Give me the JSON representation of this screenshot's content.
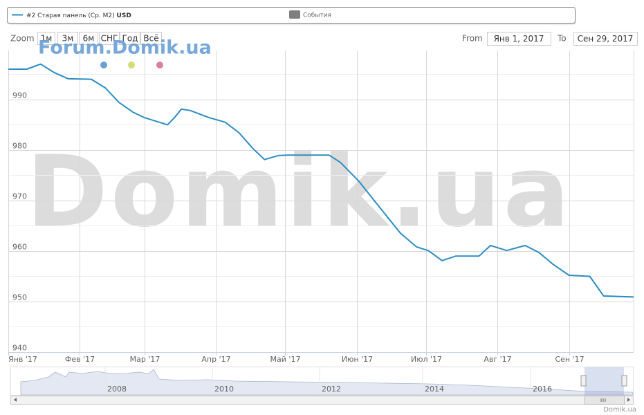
{
  "legend": {
    "events": "События"
  },
  "toolbar": {
    "zoom_label": "Zoom",
    "buttons": [
      "1м",
      "3м",
      "6м",
      "СНГ",
      "Год",
      "Всё"
    ],
    "from_label": "From",
    "from": "Янв 1, 2017",
    "to_label": "To",
    "to": "Сен 29, 2017"
  },
  "watermarks": {
    "main": "Domik.ua",
    "forum": "Forum.Domik.ua"
  },
  "credit": "Domik.ua",
  "navigator": {
    "labels": [
      "2008",
      "2010",
      "2012",
      "2014",
      "2016"
    ]
  },
  "chart_data": {
    "type": "line",
    "x": [
      "2017-01-01",
      "2017-01-09",
      "2017-01-15",
      "2017-01-21",
      "2017-01-27",
      "2017-02-06",
      "2017-02-12",
      "2017-02-18",
      "2017-02-24",
      "2017-03-01",
      "2017-03-11",
      "2017-03-14",
      "2017-03-17",
      "2017-03-21",
      "2017-03-29",
      "2017-04-05",
      "2017-04-11",
      "2017-04-17",
      "2017-04-22",
      "2017-04-28",
      "2017-05-02",
      "2017-05-20",
      "2017-05-25",
      "2017-06-02",
      "2017-06-11",
      "2017-06-20",
      "2017-06-27",
      "2017-07-02",
      "2017-07-08",
      "2017-07-14",
      "2017-07-24",
      "2017-07-29",
      "2017-08-05",
      "2017-08-13",
      "2017-08-19",
      "2017-08-25",
      "2017-09-01",
      "2017-09-10",
      "2017-09-16",
      "2017-09-29"
    ],
    "series": [
      {
        "name": "#2 Старая панель (Ср. М2)",
        "unit": "USD",
        "color": "#2a8cc4",
        "values": [
          996.0,
          996.0,
          997.0,
          995.3,
          994.1,
          994.0,
          992.3,
          989.4,
          987.5,
          986.4,
          985.0,
          986.4,
          988.1,
          987.8,
          986.4,
          985.5,
          983.4,
          980.3,
          978.1,
          978.9,
          979.0,
          979.0,
          977.5,
          973.8,
          968.6,
          963.5,
          960.8,
          960.1,
          958.1,
          959.0,
          959.0,
          961.1,
          960.1,
          961.1,
          959.7,
          957.4,
          955.2,
          955.0,
          951.1,
          950.9
        ]
      }
    ],
    "xlim": [
      "2017-01-01",
      "2017-09-29"
    ],
    "xticks": [
      {
        "value": "2017-01-01",
        "label": "Янв '17"
      },
      {
        "value": "2017-02-01",
        "label": "Фев '17"
      },
      {
        "value": "2017-03-01",
        "label": "Мар '17"
      },
      {
        "value": "2017-04-01",
        "label": "Апр '17"
      },
      {
        "value": "2017-05-01",
        "label": "Май '17"
      },
      {
        "value": "2017-06-01",
        "label": "Июн '17"
      },
      {
        "value": "2017-07-01",
        "label": "Июл '17"
      },
      {
        "value": "2017-08-01",
        "label": "Авг '17"
      },
      {
        "value": "2017-09-01",
        "label": "Сен '17"
      }
    ],
    "ylim": [
      940,
      999.7
    ],
    "yticks": [
      940,
      950,
      960,
      970,
      980,
      990
    ],
    "minor_yticks": [
      945,
      955,
      965,
      975,
      985,
      995
    ],
    "grid": true
  }
}
